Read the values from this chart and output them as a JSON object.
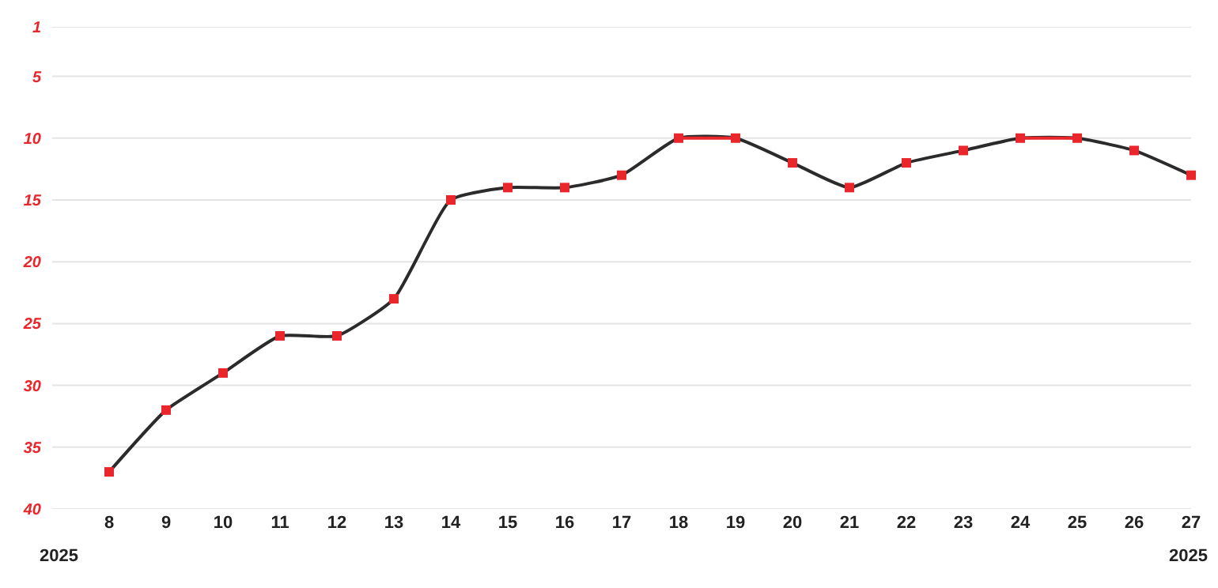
{
  "chart_data": {
    "type": "line",
    "x": [
      8,
      9,
      10,
      11,
      12,
      13,
      14,
      15,
      16,
      17,
      18,
      19,
      20,
      21,
      22,
      23,
      24,
      25,
      26,
      27
    ],
    "series": [
      {
        "color": "#2b2b2b",
        "marker": "none",
        "values": [
          37,
          32,
          29,
          26,
          26,
          23,
          15,
          14,
          14,
          13,
          10,
          10,
          12,
          14,
          12,
          11,
          10,
          10,
          11,
          13
        ]
      },
      {
        "color": "#e8262b",
        "marker": "none",
        "values": [
          null,
          null,
          null,
          null,
          null,
          null,
          null,
          null,
          null,
          null,
          10,
          10,
          null,
          null,
          null,
          null,
          10,
          10,
          null,
          null
        ]
      },
      {
        "type": "scatter",
        "color": "#e8262b",
        "marker": "square",
        "values": [
          37,
          32,
          29,
          26,
          26,
          23,
          15,
          14,
          14,
          13,
          10,
          10,
          12,
          14,
          12,
          11,
          10,
          10,
          11,
          13
        ]
      }
    ],
    "xlim": [
      7,
      27
    ],
    "xticks": [
      8,
      9,
      10,
      11,
      12,
      13,
      14,
      15,
      16,
      17,
      18,
      19,
      20,
      21,
      22,
      23,
      24,
      25,
      26,
      27
    ],
    "ylim": [
      40,
      1
    ],
    "yticks": [
      1,
      5,
      10,
      15,
      20,
      25,
      30,
      35,
      40
    ],
    "grid": "y",
    "annotations": [
      "2025",
      "2025"
    ]
  }
}
